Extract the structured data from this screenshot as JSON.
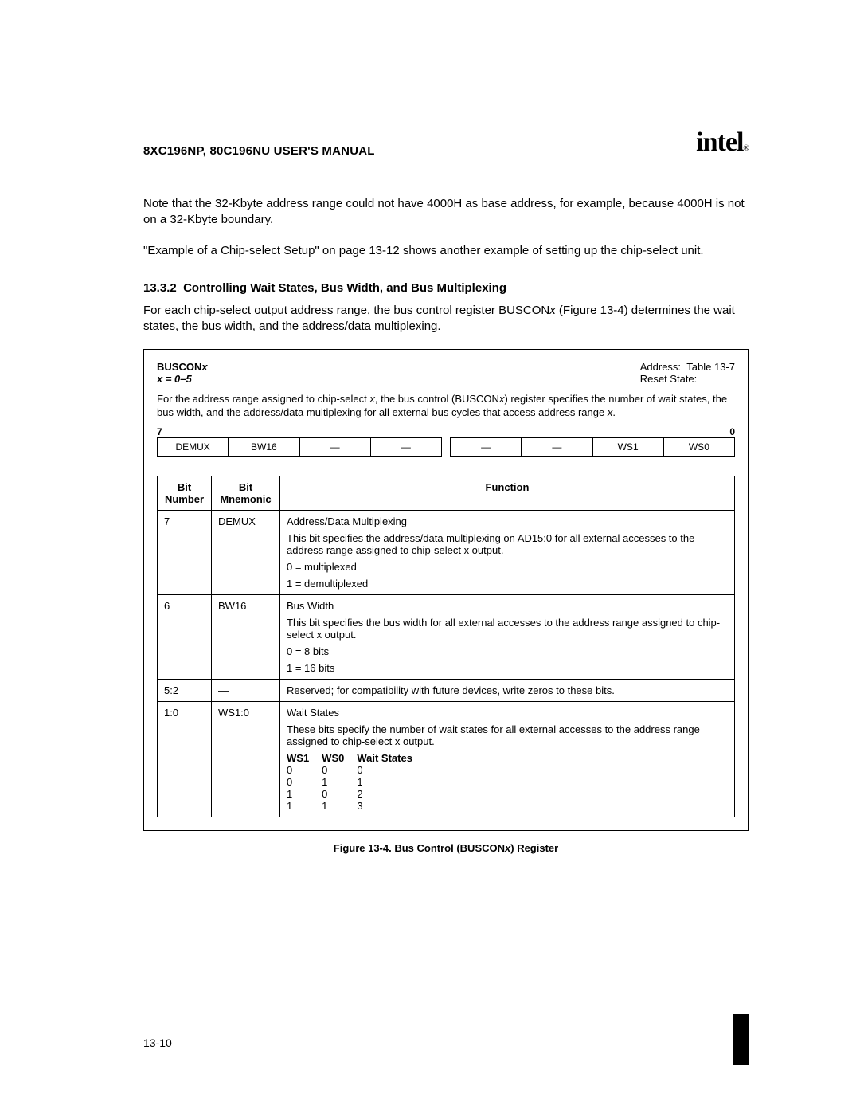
{
  "header": {
    "manual_title": "8XC196NP, 80C196NU USER'S MANUAL",
    "logo_text": "intel",
    "logo_reg": "®"
  },
  "body": {
    "p1": "Note that the 32-Kbyte address range could not have 4000H as base address, for example, because 4000H is not on a 32-Kbyte boundary.",
    "p2": "\"Example of a Chip-select Setup\" on page 13-12 shows another example of setting up the chip-select unit.",
    "sec_num": "13.3.2",
    "sec_title": "Controlling Wait States, Bus Width, and Bus Multiplexing",
    "p3_a": "For each chip-select output address range, the bus control register BUSCON",
    "p3_b": " (Figure 13-4) determines the wait states, the bus width, and the address/data multiplexing.",
    "x_var": "x"
  },
  "register": {
    "name_a": "BUSCON",
    "name_b": "x",
    "range_label": "x = 0–5",
    "addr_label": "Address:",
    "addr_value": "Table 13-7",
    "reset_label": "Reset State:",
    "desc_a": "For the address range assigned to chip-select ",
    "desc_b": ", the bus control (BUSCON",
    "desc_c": ") register specifies the number of wait states, the bus width, and the address/data multiplexing for all external bus cycles that access address range ",
    "desc_d": ".",
    "hi_bit": "7",
    "lo_bit": "0",
    "bits": [
      "DEMUX",
      "BW16",
      "—",
      "—",
      "—",
      "—",
      "WS1",
      "WS0"
    ]
  },
  "func_table": {
    "headers": {
      "num": "Bit Number",
      "mnem": "Bit Mnemonic",
      "func": "Function"
    },
    "rows": [
      {
        "num": "7",
        "mnem": "DEMUX",
        "title": "Address/Data Multiplexing",
        "text": "This bit specifies the address/data multiplexing on AD15:0 for all external accesses to the address range assigned to chip-select x output.",
        "opts": [
          "0 = multiplexed",
          "1 = demultiplexed"
        ]
      },
      {
        "num": "6",
        "mnem": "BW16",
        "title": "Bus Width",
        "text": "This bit specifies the bus width for all external accesses to the address range assigned to chip-select x output.",
        "opts": [
          "0 = 8 bits",
          "1 = 16 bits"
        ]
      },
      {
        "num": "5:2",
        "mnem": "—",
        "title": "",
        "text": "Reserved; for compatibility with future devices, write zeros to these bits.",
        "opts": []
      },
      {
        "num": "1:0",
        "mnem": "WS1:0",
        "title": "Wait States",
        "text": "These bits specify the number of wait states for all external accesses to the address range assigned to chip-select x output.",
        "opts": []
      }
    ],
    "ws_headers": [
      "WS1",
      "WS0",
      "Wait States"
    ],
    "ws_rows": [
      [
        "0",
        "0",
        "0"
      ],
      [
        "0",
        "1",
        "1"
      ],
      [
        "1",
        "0",
        "2"
      ],
      [
        "1",
        "1",
        "3"
      ]
    ]
  },
  "figure": {
    "prefix": "Figure 13-4.  Bus Control (BUSCON",
    "suffix": ") Register",
    "x": "x"
  },
  "footer": {
    "page": "13-10"
  }
}
